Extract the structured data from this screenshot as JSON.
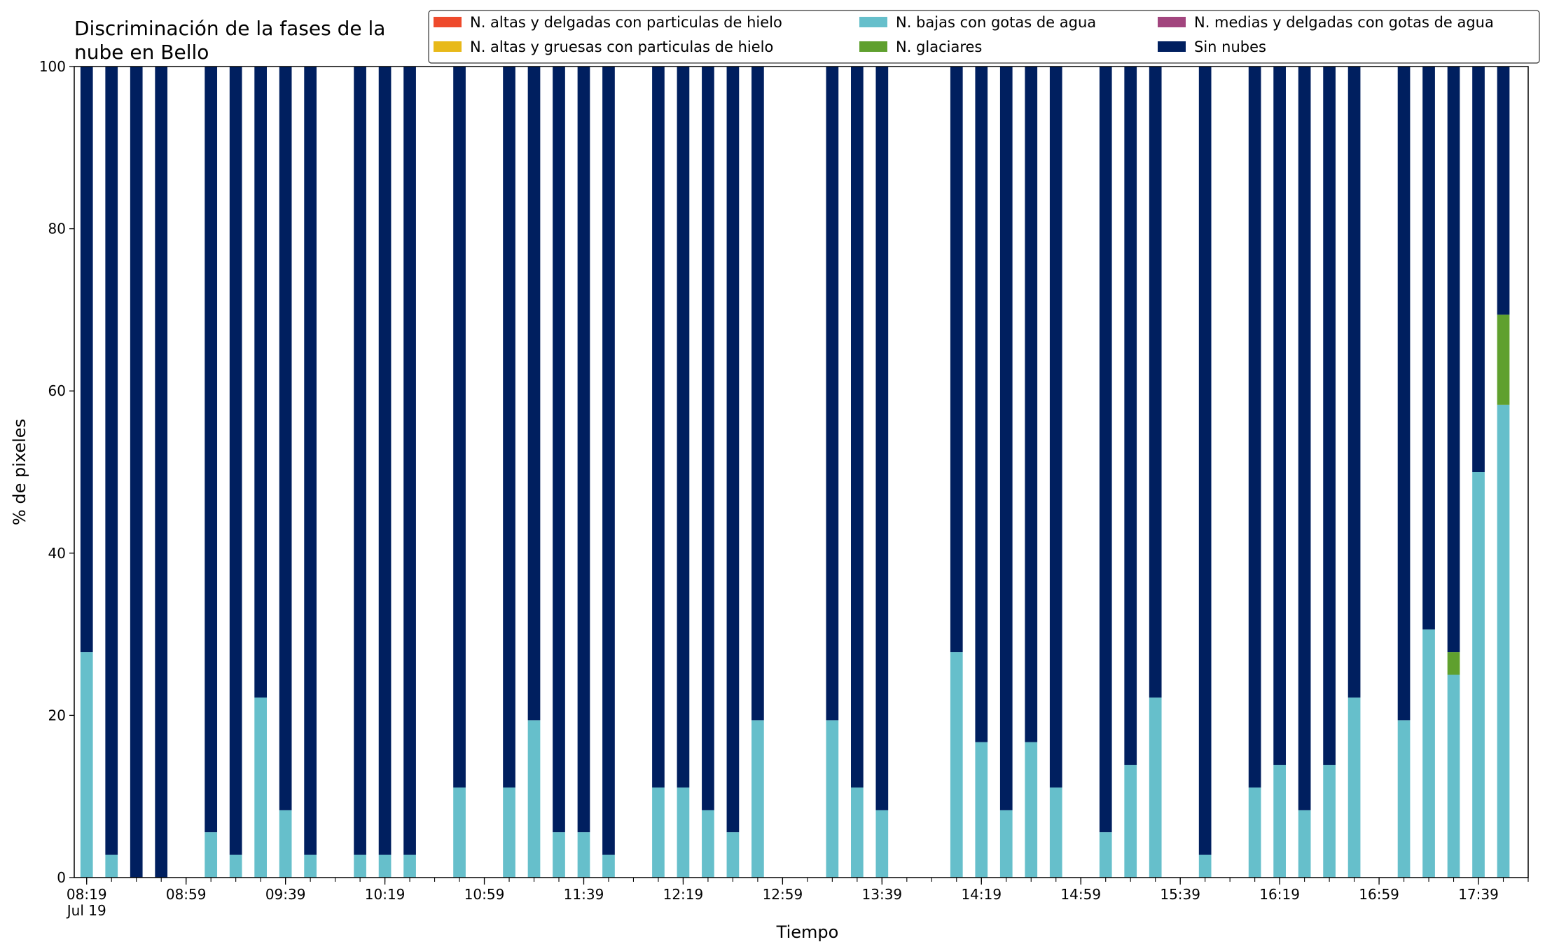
{
  "chart_data": {
    "type": "bar",
    "stacked": true,
    "title": "Discriminación de la fases de la nube en Bello",
    "xlabel": "Tiempo",
    "ylabel": "% de pixeles",
    "ylim": [
      0,
      100
    ],
    "yticks": [
      0,
      20,
      40,
      60,
      80,
      100
    ],
    "legend_placement": "top-right",
    "grid": false,
    "x_range": [
      "08:14",
      "17:59"
    ],
    "x_tick_labels": [
      {
        "t": "08:19",
        "label": "08:19",
        "sublabel": "Jul 19"
      },
      {
        "t": "08:59",
        "label": "08:59"
      },
      {
        "t": "09:39",
        "label": "09:39"
      },
      {
        "t": "10:19",
        "label": "10:19"
      },
      {
        "t": "10:59",
        "label": "10:59"
      },
      {
        "t": "11:39",
        "label": "11:39"
      },
      {
        "t": "12:19",
        "label": "12:19"
      },
      {
        "t": "12:59",
        "label": "12:59"
      },
      {
        "t": "13:39",
        "label": "13:39"
      },
      {
        "t": "14:19",
        "label": "14:19"
      },
      {
        "t": "14:59",
        "label": "14:59"
      },
      {
        "t": "15:39",
        "label": "15:39"
      },
      {
        "t": "16:19",
        "label": "16:19"
      },
      {
        "t": "16:59",
        "label": "16:59"
      },
      {
        "t": "17:39",
        "label": "17:39"
      }
    ],
    "times": [
      "08:19",
      "08:29",
      "08:39",
      "08:49",
      "09:09",
      "09:19",
      "09:29",
      "09:39",
      "09:49",
      "10:09",
      "10:19",
      "10:29",
      "10:49",
      "11:09",
      "11:19",
      "11:29",
      "11:39",
      "11:49",
      "12:09",
      "12:19",
      "12:29",
      "12:39",
      "12:49",
      "13:19",
      "13:29",
      "13:39",
      "14:09",
      "14:19",
      "14:29",
      "14:39",
      "14:49",
      "15:09",
      "15:19",
      "15:29",
      "15:49",
      "16:09",
      "16:19",
      "16:29",
      "16:39",
      "16:49",
      "17:09",
      "17:19",
      "17:29",
      "17:39",
      "17:49"
    ],
    "series": [
      {
        "name": "N. altas y delgadas con particulas de hielo",
        "color": "#ee4a2c",
        "values": [
          0,
          0,
          0,
          0,
          0,
          0,
          0,
          0,
          0,
          0,
          0,
          0,
          0,
          0,
          0,
          0,
          0,
          0,
          0,
          0,
          0,
          0,
          0,
          0,
          0,
          0,
          0,
          0,
          0,
          0,
          0,
          0,
          0,
          0,
          0,
          0,
          0,
          0,
          0,
          0,
          0,
          0,
          0,
          0,
          0
        ]
      },
      {
        "name": "N. altas y gruesas con particulas de hielo",
        "color": "#e8b919",
        "values": [
          0,
          0,
          0,
          0,
          0,
          0,
          0,
          0,
          0,
          0,
          0,
          0,
          0,
          0,
          0,
          0,
          0,
          0,
          0,
          0,
          0,
          0,
          0,
          0,
          0,
          0,
          0,
          0,
          0,
          0,
          0,
          0,
          0,
          0,
          0,
          0,
          0,
          0,
          0,
          0,
          0,
          0,
          0,
          0,
          0
        ]
      },
      {
        "name": "N. bajas con gotas de agua",
        "color": "#66bfcb",
        "values": [
          27.8,
          2.8,
          0,
          0,
          5.6,
          2.8,
          22.2,
          8.3,
          2.8,
          2.8,
          2.8,
          2.8,
          11.1,
          11.1,
          19.4,
          5.6,
          5.6,
          2.8,
          11.1,
          11.1,
          8.3,
          5.6,
          19.4,
          19.4,
          11.1,
          8.3,
          27.8,
          16.7,
          8.3,
          16.7,
          11.1,
          5.6,
          13.9,
          22.2,
          2.8,
          11.1,
          13.9,
          8.3,
          13.9,
          22.2,
          19.4,
          30.6,
          25.0,
          50.0,
          58.3
        ]
      },
      {
        "name": "N. glaciares",
        "color": "#5fa02e",
        "values": [
          0,
          0,
          0,
          0,
          0,
          0,
          0,
          0,
          0,
          0,
          0,
          0,
          0,
          0,
          0,
          0,
          0,
          0,
          0,
          0,
          0,
          0,
          0,
          0,
          0,
          0,
          0,
          0,
          0,
          0,
          0,
          0,
          0,
          0,
          0,
          0,
          0,
          0,
          0,
          0,
          0,
          0,
          2.8,
          0,
          11.1
        ]
      },
      {
        "name": "N. medias y delgadas con gotas de agua",
        "color": "#a2457e",
        "values": [
          0,
          0,
          0,
          0,
          0,
          0,
          0,
          0,
          0,
          0,
          0,
          0,
          0,
          0,
          0,
          0,
          0,
          0,
          0,
          0,
          0,
          0,
          0,
          0,
          0,
          0,
          0,
          0,
          0,
          0,
          0,
          0,
          0,
          0,
          0,
          0,
          0,
          0,
          0,
          0,
          0,
          0,
          0,
          0,
          0
        ]
      },
      {
        "name": "Sin nubes",
        "color": "#001f5f",
        "values": [
          72.2,
          97.2,
          100,
          100,
          94.4,
          97.2,
          77.8,
          91.7,
          97.2,
          97.2,
          97.2,
          97.2,
          88.9,
          88.9,
          80.6,
          94.4,
          94.4,
          97.2,
          88.9,
          88.9,
          91.7,
          94.4,
          80.6,
          80.6,
          88.9,
          91.7,
          72.2,
          83.3,
          91.7,
          83.3,
          88.9,
          94.4,
          86.1,
          77.8,
          97.2,
          88.9,
          86.1,
          91.7,
          86.1,
          77.8,
          80.6,
          69.4,
          72.2,
          50.0,
          30.6
        ]
      }
    ]
  }
}
